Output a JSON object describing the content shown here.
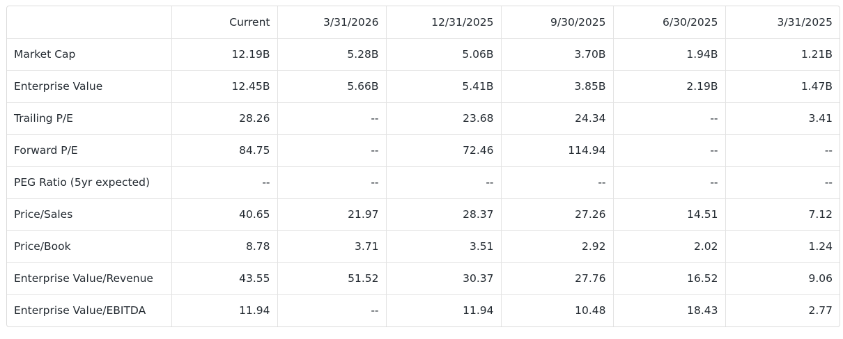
{
  "table": {
    "header": [
      "Current",
      "3/31/2026",
      "12/31/2025",
      "9/30/2025",
      "6/30/2025",
      "3/31/2025"
    ],
    "rows": [
      [
        "Market Cap",
        "12.19B",
        "5.28B",
        "5.06B",
        "3.70B",
        "1.94B",
        "1.21B"
      ],
      [
        "Enterprise Value",
        "12.45B",
        "5.66B",
        "5.41B",
        "3.85B",
        "2.19B",
        "1.47B"
      ],
      [
        "Trailing P/E",
        "28.26",
        "--",
        "23.68",
        "24.34",
        "--",
        "3.41"
      ],
      [
        "Forward P/E",
        "84.75",
        "--",
        "72.46",
        "114.94",
        "--",
        "--"
      ],
      [
        "PEG Ratio (5yr expected)",
        "--",
        "--",
        "--",
        "--",
        "--",
        "--"
      ],
      [
        "Price/Sales",
        "40.65",
        "21.97",
        "28.37",
        "27.26",
        "14.51",
        "7.12"
      ],
      [
        "Price/Book",
        "8.78",
        "3.71",
        "3.51",
        "2.92",
        "2.02",
        "1.24"
      ],
      [
        "Enterprise Value/Revenue",
        "43.55",
        "51.52",
        "30.37",
        "27.76",
        "16.52",
        "9.06"
      ],
      [
        "Enterprise Value/EBITDA",
        "11.94",
        "--",
        "11.94",
        "10.48",
        "18.43",
        "2.77"
      ]
    ]
  }
}
